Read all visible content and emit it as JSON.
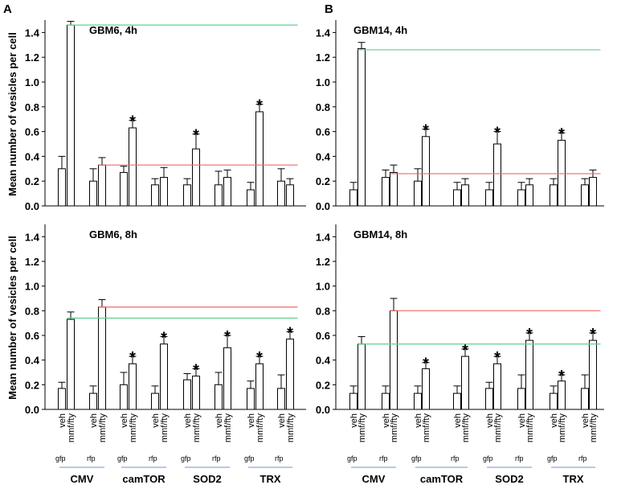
{
  "figure": {
    "panel_letters": [
      "A",
      "B"
    ],
    "ylabel": "Mean number of vesicles per cell",
    "x_tick_labels": [
      "veh",
      "mmf/fty"
    ],
    "sub_labels": [
      "gfp",
      "rfp"
    ],
    "group_labels": [
      "CMV",
      "camTOR",
      "SOD2",
      "TRX"
    ],
    "colors": {
      "green_line": "#5fcf8f",
      "red_line": "#f0696a",
      "group_underline": "#8fa8dc",
      "bar_fill": "#ffffff",
      "bar_stroke": "#000000"
    }
  },
  "chart_data": [
    {
      "type": "bar",
      "title": "GBM6, 4h",
      "ylim": [
        0,
        1.5
      ],
      "yticks": [
        0,
        0.2,
        0.4,
        0.6,
        0.8,
        1.0,
        1.2,
        1.4
      ],
      "ytick_labels": [
        "0.0",
        "0.2",
        "0.4",
        "0.6",
        "0.8",
        "1.0",
        "1.2",
        "1.4"
      ],
      "ylabel": "Mean number of vesicles per cell",
      "categories": [
        "CMV gfp veh",
        "CMV gfp mmf/fty",
        "CMV rfp veh",
        "CMV rfp mmf/fty",
        "camTOR gfp veh",
        "camTOR gfp mmf/fty",
        "camTOR rfp veh",
        "camTOR rfp mmf/fty",
        "SOD2 gfp veh",
        "SOD2 gfp mmf/fty",
        "SOD2 rfp veh",
        "SOD2 rfp mmf/fty",
        "TRX gfp veh",
        "TRX gfp mmf/fty",
        "TRX rfp veh",
        "TRX rfp mmf/fty"
      ],
      "values": [
        0.3,
        1.46,
        0.2,
        0.33,
        0.27,
        0.63,
        0.17,
        0.23,
        0.17,
        0.46,
        0.17,
        0.23,
        0.13,
        0.76,
        0.2,
        0.17
      ],
      "errors": [
        0.1,
        0.03,
        0.1,
        0.06,
        0.05,
        0.06,
        0.05,
        0.08,
        0.05,
        0.12,
        0.11,
        0.06,
        0.06,
        0.06,
        0.1,
        0.05
      ],
      "significant": [
        false,
        false,
        false,
        false,
        false,
        true,
        false,
        false,
        false,
        true,
        false,
        false,
        false,
        true,
        false,
        false
      ],
      "reference_lines": [
        {
          "color": "green",
          "y": 1.46,
          "from": 1,
          "to": 15
        },
        {
          "color": "red",
          "y": 0.33,
          "from": 3,
          "to": 15
        }
      ]
    },
    {
      "type": "bar",
      "title": "GBM14, 4h",
      "ylim": [
        0,
        1.5
      ],
      "yticks": [
        0,
        0.2,
        0.4,
        0.6,
        0.8,
        1.0,
        1.2,
        1.4
      ],
      "ytick_labels": [
        "0.0",
        "0.2",
        "0.4",
        "0.6",
        "0.8",
        "1.0",
        "1.2",
        "1.4"
      ],
      "categories": [
        "CMV gfp veh",
        "CMV gfp mmf/fty",
        "CMV rfp veh",
        "CMV rfp mmf/fty",
        "camTOR gfp veh",
        "camTOR gfp mmf/fty",
        "camTOR rfp veh",
        "camTOR rfp mmf/fty",
        "SOD2 gfp veh",
        "SOD2 gfp mmf/fty",
        "SOD2 rfp veh",
        "SOD2 rfp mmf/fty",
        "TRX gfp veh",
        "TRX gfp mmf/fty",
        "TRX rfp veh",
        "TRX rfp mmf/fty"
      ],
      "values": [
        0.13,
        1.27,
        0.23,
        0.27,
        0.2,
        0.56,
        0.13,
        0.17,
        0.13,
        0.5,
        0.13,
        0.17,
        0.17,
        0.53,
        0.17,
        0.23
      ],
      "errors": [
        0.06,
        0.05,
        0.06,
        0.06,
        0.1,
        0.06,
        0.06,
        0.05,
        0.06,
        0.1,
        0.06,
        0.05,
        0.05,
        0.06,
        0.05,
        0.06
      ],
      "significant": [
        false,
        false,
        false,
        false,
        false,
        true,
        false,
        false,
        false,
        true,
        false,
        false,
        false,
        true,
        false,
        false
      ],
      "reference_lines": [
        {
          "color": "green",
          "y": 1.26,
          "from": 1,
          "to": 15
        },
        {
          "color": "red",
          "y": 0.26,
          "from": 3,
          "to": 15
        }
      ]
    },
    {
      "type": "bar",
      "title": "GBM6, 8h",
      "ylim": [
        0,
        1.5
      ],
      "yticks": [
        0,
        0.2,
        0.4,
        0.6,
        0.8,
        1.0,
        1.2,
        1.4
      ],
      "ytick_labels": [
        "0.0",
        "0.2",
        "0.4",
        "0.6",
        "0.8",
        "1.0",
        "1.2",
        "1.4"
      ],
      "ylabel": "Mean number of vesicles per cell",
      "categories": [
        "CMV gfp veh",
        "CMV gfp mmf/fty",
        "CMV rfp veh",
        "CMV rfp mmf/fty",
        "camTOR gfp veh",
        "camTOR gfp mmf/fty",
        "camTOR rfp veh",
        "camTOR rfp mmf/fty",
        "SOD2 gfp veh",
        "SOD2 gfp mmf/fty",
        "SOD2 rfp veh",
        "SOD2 rfp mmf/fty",
        "TRX gfp veh",
        "TRX gfp mmf/fty",
        "TRX rfp veh",
        "TRX rfp mmf/fty"
      ],
      "values": [
        0.17,
        0.73,
        0.13,
        0.83,
        0.2,
        0.37,
        0.13,
        0.53,
        0.24,
        0.27,
        0.2,
        0.5,
        0.17,
        0.37,
        0.17,
        0.57
      ],
      "errors": [
        0.05,
        0.06,
        0.06,
        0.06,
        0.1,
        0.06,
        0.06,
        0.06,
        0.05,
        0.06,
        0.1,
        0.1,
        0.06,
        0.06,
        0.11,
        0.06
      ],
      "significant": [
        false,
        false,
        false,
        false,
        false,
        true,
        false,
        true,
        false,
        true,
        false,
        true,
        false,
        true,
        false,
        true
      ],
      "reference_lines": [
        {
          "color": "green",
          "y": 0.74,
          "from": 1,
          "to": 15
        },
        {
          "color": "red",
          "y": 0.83,
          "from": 3,
          "to": 15
        }
      ]
    },
    {
      "type": "bar",
      "title": "GBM14, 8h",
      "ylim": [
        0,
        1.5
      ],
      "yticks": [
        0,
        0.2,
        0.4,
        0.6,
        0.8,
        1.0,
        1.2,
        1.4
      ],
      "ytick_labels": [
        "0.0",
        "0.2",
        "0.4",
        "0.6",
        "0.8",
        "1.0",
        "1.2",
        "1.4"
      ],
      "categories": [
        "CMV gfp veh",
        "CMV gfp mmf/fty",
        "CMV rfp veh",
        "CMV rfp mmf/fty",
        "camTOR gfp veh",
        "camTOR gfp mmf/fty",
        "camTOR rfp veh",
        "camTOR rfp mmf/fty",
        "SOD2 gfp veh",
        "SOD2 gfp mmf/fty",
        "SOD2 rfp veh",
        "SOD2 rfp mmf/fty",
        "TRX gfp veh",
        "TRX gfp mmf/fty",
        "TRX rfp veh",
        "TRX rfp mmf/fty"
      ],
      "values": [
        0.13,
        0.53,
        0.13,
        0.8,
        0.13,
        0.33,
        0.13,
        0.43,
        0.17,
        0.37,
        0.17,
        0.56,
        0.13,
        0.23,
        0.17,
        0.56
      ],
      "errors": [
        0.06,
        0.06,
        0.06,
        0.1,
        0.06,
        0.05,
        0.06,
        0.06,
        0.05,
        0.06,
        0.11,
        0.06,
        0.06,
        0.05,
        0.11,
        0.06
      ],
      "significant": [
        false,
        false,
        false,
        false,
        false,
        true,
        false,
        true,
        false,
        true,
        false,
        true,
        false,
        true,
        false,
        true
      ],
      "reference_lines": [
        {
          "color": "green",
          "y": 0.53,
          "from": 1,
          "to": 15
        },
        {
          "color": "red",
          "y": 0.8,
          "from": 3,
          "to": 15
        }
      ]
    }
  ]
}
